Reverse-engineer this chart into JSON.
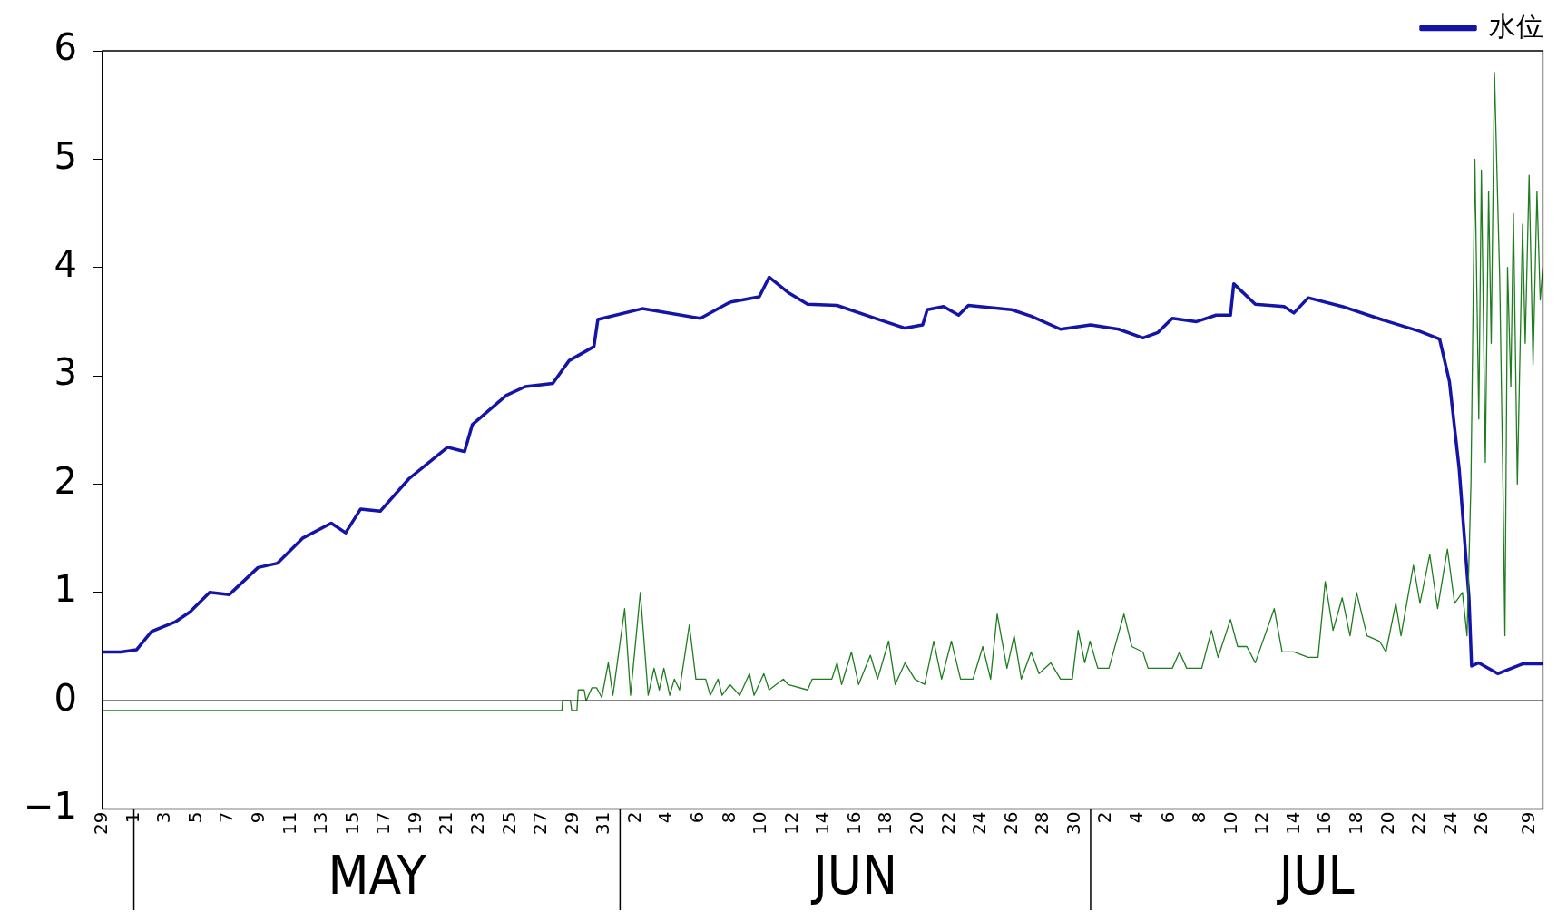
{
  "chart_data": {
    "type": "line",
    "xlim": [
      "--04-29T00:00",
      "--07-29T20:00"
    ],
    "xticks": [
      {
        "value": "--04-29",
        "label": "29"
      },
      {
        "value": "--05-01",
        "label": "1"
      },
      {
        "value": "--05-03",
        "label": "3"
      },
      {
        "value": "--05-05",
        "label": "5"
      },
      {
        "value": "--05-07",
        "label": "7"
      },
      {
        "value": "--05-09",
        "label": "9"
      },
      {
        "value": "--05-11",
        "label": "11"
      },
      {
        "value": "--05-13",
        "label": "13"
      },
      {
        "value": "--05-15",
        "label": "15"
      },
      {
        "value": "--05-17",
        "label": "17"
      },
      {
        "value": "--05-19",
        "label": "19"
      },
      {
        "value": "--05-21",
        "label": "21"
      },
      {
        "value": "--05-23",
        "label": "23"
      },
      {
        "value": "--05-25",
        "label": "25"
      },
      {
        "value": "--05-27",
        "label": "27"
      },
      {
        "value": "--05-29",
        "label": "29"
      },
      {
        "value": "--05-31",
        "label": "31"
      },
      {
        "value": "--06-02",
        "label": "2"
      },
      {
        "value": "--06-04",
        "label": "4"
      },
      {
        "value": "--06-06",
        "label": "6"
      },
      {
        "value": "--06-08",
        "label": "8"
      },
      {
        "value": "--06-10",
        "label": "10"
      },
      {
        "value": "--06-12",
        "label": "12"
      },
      {
        "value": "--06-14",
        "label": "14"
      },
      {
        "value": "--06-16",
        "label": "16"
      },
      {
        "value": "--06-18",
        "label": "18"
      },
      {
        "value": "--06-20",
        "label": "20"
      },
      {
        "value": "--06-22",
        "label": "22"
      },
      {
        "value": "--06-24",
        "label": "24"
      },
      {
        "value": "--06-26",
        "label": "26"
      },
      {
        "value": "--06-28",
        "label": "28"
      },
      {
        "value": "--06-30",
        "label": "30"
      },
      {
        "value": "--07-02",
        "label": "2"
      },
      {
        "value": "--07-04",
        "label": "4"
      },
      {
        "value": "--07-06",
        "label": "6"
      },
      {
        "value": "--07-08",
        "label": "8"
      },
      {
        "value": "--07-10",
        "label": "10"
      },
      {
        "value": "--07-12",
        "label": "12"
      },
      {
        "value": "--07-14",
        "label": "14"
      },
      {
        "value": "--07-16",
        "label": "16"
      },
      {
        "value": "--07-18",
        "label": "18"
      },
      {
        "value": "--07-20",
        "label": "20"
      },
      {
        "value": "--07-22",
        "label": "22"
      },
      {
        "value": "--07-24",
        "label": "24"
      },
      {
        "value": "--07-26",
        "label": "26"
      },
      {
        "value": "--07-29",
        "label": "29"
      }
    ],
    "ylim": [
      -1,
      6
    ],
    "yticks": [
      -1,
      0,
      1,
      2,
      3,
      4,
      5,
      6
    ],
    "grid": false,
    "legend": "top right",
    "marker": "none",
    "line_style": "solid",
    "annotations": [
      "MAY",
      "JUN",
      "JUL"
    ],
    "ref_lines": [
      {
        "axis": "y",
        "value": 0,
        "color": "#000000"
      }
    ],
    "series": [
      {
        "name": "水位",
        "color": "#1414a8",
        "x": [
          "--04-29T00:00",
          "--04-30T04:00",
          "--05-01T04:00",
          "--05-02T03:00",
          "--05-03T16:00",
          "--05-04T14:00",
          "--05-05T20:00",
          "--05-07T02:00",
          "--05-08T22:00",
          "--05-10T04:00",
          "--05-11T18:00",
          "--05-13T14:00",
          "--05-14T12:00",
          "--05-15T11:00",
          "--05-16T17:00",
          "--05-18T13:00",
          "--05-21T00:00",
          "--05-22T02:00",
          "--05-22T14:00",
          "--05-24T18:00",
          "--05-25T23:00",
          "--05-27T17:00",
          "--05-28T18:00",
          "--05-30T08:00",
          "--05-30T14:00",
          "--06-02T10:00",
          "--06-06T03:00",
          "--06-08T00:00",
          "--06-09T21:00",
          "--06-10T12:00",
          "--06-11T17:00",
          "--06-12T23:00",
          "--06-14T20:00",
          "--06-17T07:00",
          "--06-19T04:00",
          "--06-20T07:00",
          "--06-20T14:00",
          "--06-21T15:00",
          "--06-22T14:00",
          "--06-23T05:00",
          "--06-25T23:00",
          "--06-27T05:00",
          "--06-29T02:00",
          "--07-01T00:00",
          "--07-02T19:00",
          "--07-04T08:00",
          "--07-05T07:00",
          "--07-06T05:00",
          "--07-07T18:00",
          "--07-09T00:00",
          "--07-09T22:00",
          "--07-10T03:00",
          "--07-11T12:00",
          "--07-13T08:00",
          "--07-13T23:00",
          "--07-14T21:00",
          "--07-17T01:00",
          "--07-19T13:00",
          "--07-22T00:00",
          "--07-23T06:00",
          "--07-23T21:00",
          "--07-24T12:00",
          "--07-25T03:00",
          "--07-25T07:00",
          "--07-25T18:00",
          "--07-26T23:00",
          "--07-28T13:00",
          "--07-29T20:00"
        ],
        "values": [
          0.45,
          0.45,
          0.47,
          0.64,
          0.73,
          0.82,
          1.0,
          0.98,
          1.23,
          1.27,
          1.5,
          1.64,
          1.55,
          1.77,
          1.75,
          2.05,
          2.34,
          2.3,
          2.55,
          2.82,
          2.9,
          2.93,
          3.14,
          3.27,
          3.52,
          3.62,
          3.53,
          3.68,
          3.73,
          3.91,
          3.77,
          3.66,
          3.65,
          3.53,
          3.44,
          3.47,
          3.61,
          3.64,
          3.56,
          3.65,
          3.61,
          3.55,
          3.43,
          3.47,
          3.43,
          3.35,
          3.4,
          3.53,
          3.5,
          3.56,
          3.56,
          3.85,
          3.66,
          3.64,
          3.58,
          3.72,
          3.64,
          3.52,
          3.41,
          3.34,
          2.95,
          2.14,
          0.95,
          0.32,
          0.35,
          0.25,
          0.34,
          0.34
        ]
      },
      {
        "color": "#1e7d1e",
        "x": [
          "--04-29T00:00",
          "--05-28T07:00",
          "--05-28T08:00",
          "--05-28T20:00",
          "--05-28T22:00",
          "--05-29T06:00",
          "--05-29T08:00",
          "--05-29T17:00",
          "--05-29T20:00",
          "--05-30T05:00",
          "--05-30T12:00",
          "--05-30T20:00",
          "--05-31T06:00",
          "--05-31T13:00",
          "--06-01T07:00",
          "--06-01T16:00",
          "--06-02T07:00",
          "--06-02T19:00",
          "--06-03T04:00",
          "--06-03T12:00",
          "--06-03T19:00",
          "--06-04T04:00",
          "--06-04T11:00",
          "--06-04T19:00",
          "--06-05T10:00",
          "--06-05T20:00",
          "--06-06T11:00",
          "--06-06T18:00",
          "--06-07T06:00",
          "--06-07T12:00",
          "--06-08T00:00",
          "--06-08T15:00",
          "--06-09T06:00",
          "--06-09T13:00",
          "--06-10T04:00",
          "--06-10T12:00",
          "--06-11T10:00",
          "--06-11T17:00",
          "--06-12T23:00",
          "--06-13T06:00",
          "--06-14T12:00",
          "--06-14T20:00",
          "--06-15T03:00",
          "--06-15T18:00",
          "--06-16T05:00",
          "--06-16T23:00",
          "--06-17T10:00",
          "--06-18T03:00",
          "--06-18T13:00",
          "--06-19T04:00",
          "--06-19T19:00",
          "--06-20T10:00",
          "--06-21T00:00",
          "--06-21T12:00",
          "--06-22T03:00",
          "--06-22T17:00",
          "--06-23T12:00",
          "--06-24T03:00",
          "--06-24T15:00",
          "--06-25T01:00",
          "--06-25T16:00",
          "--06-26T03:00",
          "--06-26T14:00",
          "--06-27T05:00",
          "--06-27T17:00",
          "--06-28T11:00",
          "--06-29T02:00",
          "--06-29T20:00",
          "--06-30T05:00",
          "--06-30T15:00",
          "--06-30T23:00",
          "--07-01T11:00",
          "--07-02T04:00",
          "--07-03T03:00",
          "--07-03T15:00",
          "--07-04T08:00",
          "--07-04T16:00",
          "--07-06T05:00",
          "--07-06T16:00",
          "--07-07T03:00",
          "--07-08T02:00",
          "--07-08T17:00",
          "--07-09T03:00",
          "--07-09T22:00",
          "--07-10T09:00",
          "--07-10T23:00",
          "--07-11T12:00",
          "--07-12T17:00",
          "--07-13T05:00",
          "--07-13T23:00",
          "--07-14T21:00",
          "--07-15T12:00",
          "--07-15T23:00",
          "--07-16T11:00",
          "--07-17T01:00",
          "--07-17T13:00",
          "--07-17T23:00",
          "--07-18T15:00",
          "--07-19T10:00",
          "--07-19T20:00",
          "--07-20T11:00",
          "--07-20T19:00",
          "--07-21T14:00",
          "--07-22T00:00",
          "--07-22T15:00",
          "--07-23T03:00",
          "--07-23T18:00",
          "--07-24T05:00",
          "--07-24T17:00",
          "--07-25T00:00",
          "--07-25T06:00",
          "--07-25T12:00",
          "--07-25T18:00",
          "--07-25T22:00",
          "--07-26T04:00",
          "--07-26T09:00",
          "--07-26T13:00",
          "--07-26T18:00",
          "--07-26T23:00",
          "--07-27T02:00",
          "--07-27T07:00",
          "--07-27T10:00",
          "--07-27T14:00",
          "--07-27T19:00",
          "--07-27T23:00",
          "--07-28T05:00",
          "--07-28T13:00",
          "--07-28T17:00",
          "--07-28T23:00",
          "--07-29T05:00",
          "--07-29T11:00",
          "--07-29T16:00",
          "--07-29T20:00"
        ],
        "values": [
          -0.09,
          -0.09,
          0.0,
          0.0,
          -0.09,
          -0.09,
          0.1,
          0.1,
          0.0,
          0.12,
          0.12,
          0.03,
          0.35,
          0.05,
          0.85,
          0.05,
          1.0,
          0.05,
          0.3,
          0.1,
          0.3,
          0.05,
          0.2,
          0.1,
          0.7,
          0.2,
          0.2,
          0.05,
          0.2,
          0.05,
          0.15,
          0.05,
          0.25,
          0.05,
          0.25,
          0.1,
          0.2,
          0.15,
          0.1,
          0.2,
          0.2,
          0.35,
          0.15,
          0.45,
          0.15,
          0.42,
          0.2,
          0.55,
          0.15,
          0.35,
          0.2,
          0.15,
          0.55,
          0.2,
          0.55,
          0.2,
          0.2,
          0.5,
          0.2,
          0.8,
          0.3,
          0.6,
          0.2,
          0.45,
          0.25,
          0.35,
          0.2,
          0.2,
          0.65,
          0.35,
          0.55,
          0.3,
          0.3,
          0.8,
          0.5,
          0.45,
          0.3,
          0.3,
          0.45,
          0.3,
          0.3,
          0.65,
          0.4,
          0.75,
          0.5,
          0.5,
          0.35,
          0.85,
          0.45,
          0.45,
          0.4,
          0.4,
          1.1,
          0.65,
          0.95,
          0.6,
          1.0,
          0.6,
          0.55,
          0.45,
          0.9,
          0.6,
          1.25,
          0.9,
          1.35,
          0.85,
          1.4,
          0.9,
          1.0,
          0.6,
          2.0,
          5.0,
          2.6,
          4.9,
          2.2,
          4.7,
          3.3,
          5.8,
          4.6,
          3.9,
          2.0,
          0.6,
          4.0,
          2.9,
          4.5,
          2.0,
          4.4,
          3.3,
          4.85,
          3.1,
          4.7,
          3.7,
          4.0
        ]
      }
    ]
  }
}
